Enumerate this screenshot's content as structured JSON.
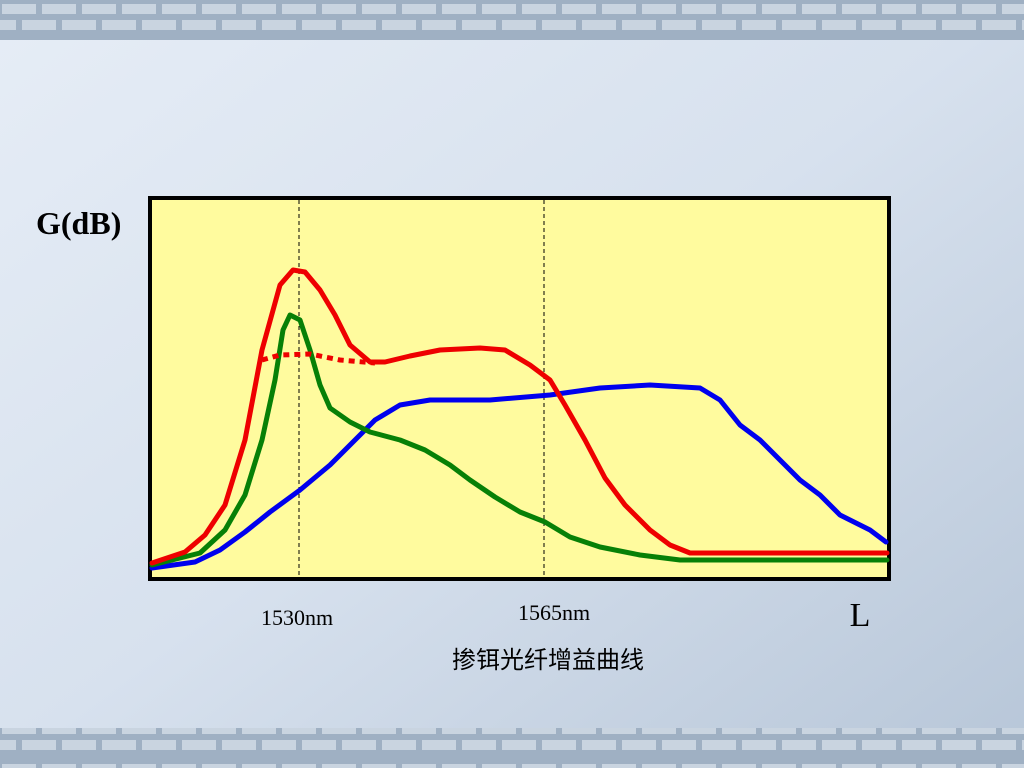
{
  "y_axis_label": "G(dB)",
  "markers": [
    "1530nm",
    "1565nm"
  ],
  "x_axis_symbol": "L",
  "caption": "掺铒光纤增益曲线"
}
